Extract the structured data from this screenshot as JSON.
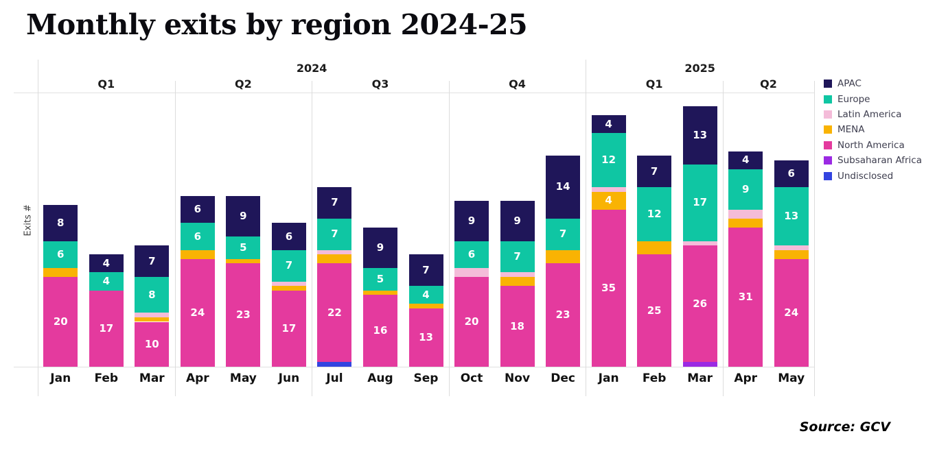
{
  "title": "Monthly exits by region 2024-25",
  "y_axis_label": "Exits #",
  "source_note": "Source: GCV",
  "chart_data": {
    "type": "bar",
    "stacked": true,
    "title": "Monthly exits by region 2024-25",
    "ylabel": "Exits #",
    "legend_position": "right",
    "grid": "quarter/year separators, header rule and baseline only",
    "label_min_value": 4,
    "ylim": [
      0,
      58
    ],
    "years": [
      {
        "label": "2024",
        "months": 12
      },
      {
        "label": "2025",
        "months": 5
      }
    ],
    "quarters": [
      {
        "label": "Q1",
        "months": 3
      },
      {
        "label": "Q2",
        "months": 3
      },
      {
        "label": "Q3",
        "months": 3
      },
      {
        "label": "Q4",
        "months": 3
      },
      {
        "label": "Q1",
        "months": 3
      },
      {
        "label": "Q2",
        "months": 2
      }
    ],
    "categories": [
      "Jan",
      "Feb",
      "Mar",
      "Apr",
      "May",
      "Jun",
      "Jul",
      "Aug",
      "Sep",
      "Oct",
      "Nov",
      "Dec",
      "Jan",
      "Feb",
      "Mar",
      "Apr",
      "May"
    ],
    "series": [
      {
        "name": "Undisclosed",
        "color": "#3344E0",
        "values": [
          0,
          0,
          0,
          0,
          0,
          0,
          1,
          0,
          0,
          0,
          0,
          0,
          0,
          0,
          0,
          0,
          0
        ]
      },
      {
        "name": "Subsaharan Africa",
        "color": "#9B2AE3",
        "values": [
          0,
          0,
          0,
          0,
          0,
          0,
          0,
          0,
          0,
          0,
          0,
          0,
          0,
          0,
          1,
          0,
          0
        ]
      },
      {
        "name": "North America",
        "color": "#E43A9E",
        "values": [
          20,
          17,
          10,
          24,
          23,
          17,
          22,
          16,
          13,
          20,
          18,
          23,
          35,
          25,
          26,
          31,
          24
        ]
      },
      {
        "name": "MENA",
        "color": "#F9B303",
        "values": [
          2,
          0,
          1,
          2,
          1,
          1,
          2,
          1,
          1,
          0,
          2,
          3,
          4,
          3,
          0,
          2,
          2
        ]
      },
      {
        "name": "Latin America",
        "color": "#F4BCD9",
        "values": [
          0,
          0,
          1,
          0,
          0,
          1,
          1,
          0,
          0,
          2,
          1,
          0,
          1,
          0,
          1,
          2,
          1
        ]
      },
      {
        "name": "Europe",
        "color": "#0FC6A3",
        "values": [
          6,
          4,
          8,
          6,
          5,
          7,
          7,
          5,
          4,
          6,
          7,
          7,
          12,
          12,
          17,
          9,
          13
        ]
      },
      {
        "name": "APAC",
        "color": "#1F1659",
        "values": [
          8,
          4,
          7,
          6,
          9,
          6,
          7,
          9,
          7,
          9,
          9,
          14,
          4,
          7,
          13,
          4,
          6
        ]
      }
    ],
    "totals": [
      36,
      25,
      27,
      38,
      38,
      32,
      40,
      31,
      25,
      37,
      37,
      47,
      56,
      47,
      58,
      48,
      46
    ]
  }
}
